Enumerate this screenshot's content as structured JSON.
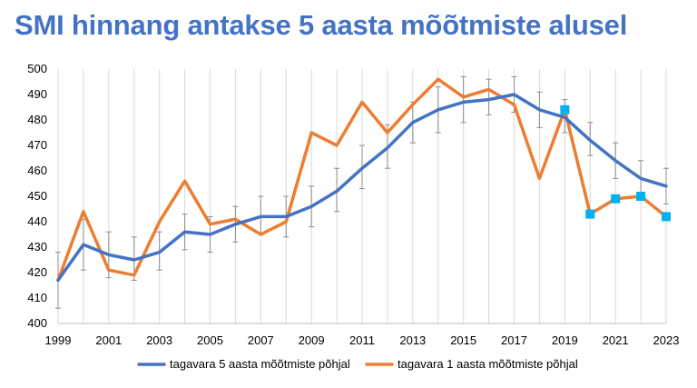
{
  "title": "SMI hinnang antakse 5 aasta mõõtmiste alusel",
  "chart_data": {
    "type": "line",
    "x": [
      1999,
      2000,
      2001,
      2002,
      2003,
      2004,
      2005,
      2006,
      2007,
      2008,
      2009,
      2010,
      2011,
      2012,
      2013,
      2014,
      2015,
      2016,
      2017,
      2018,
      2019,
      2020,
      2021,
      2022,
      2023
    ],
    "xticks": [
      1999,
      2001,
      2003,
      2005,
      2007,
      2009,
      2011,
      2013,
      2015,
      2017,
      2019,
      2021,
      2023
    ],
    "xlim": [
      1999,
      2023
    ],
    "ylim": [
      400,
      500
    ],
    "yticks": [
      400,
      410,
      420,
      430,
      440,
      450,
      460,
      470,
      480,
      490,
      500
    ],
    "grid": "vertical",
    "legend_position": "bottom",
    "series": [
      {
        "name": "tagavara 5 aasta mõõtmiste põhjal",
        "color": "#4472c4",
        "values": [
          417,
          431,
          427,
          425,
          428,
          436,
          435,
          439,
          442,
          442,
          446,
          452,
          461,
          469,
          479,
          484,
          487,
          488,
          490,
          484,
          481,
          472,
          464,
          457,
          454
        ],
        "error_low": [
          406,
          421,
          418,
          417,
          421,
          429,
          428,
          432,
          435,
          434,
          438,
          444,
          453,
          461,
          471,
          475,
          479,
          482,
          483,
          477,
          475,
          466,
          457,
          450,
          447
        ],
        "error_high": [
          428,
          441,
          436,
          434,
          436,
          443,
          442,
          446,
          450,
          450,
          454,
          461,
          470,
          478,
          487,
          493,
          497,
          496,
          497,
          491,
          488,
          479,
          471,
          464,
          461
        ]
      },
      {
        "name": "tagavara 1 aasta mõõtmiste põhjal",
        "color": "#ed7d31",
        "marker_color": "#00b0f0",
        "values": [
          417,
          444,
          421,
          419,
          440,
          456,
          439,
          441,
          435,
          440,
          475,
          470,
          487,
          475,
          486,
          496,
          489,
          492,
          486,
          457,
          484,
          443,
          449,
          450,
          442
        ],
        "marked_x": [
          2019,
          2020,
          2021,
          2022,
          2023
        ]
      }
    ]
  }
}
